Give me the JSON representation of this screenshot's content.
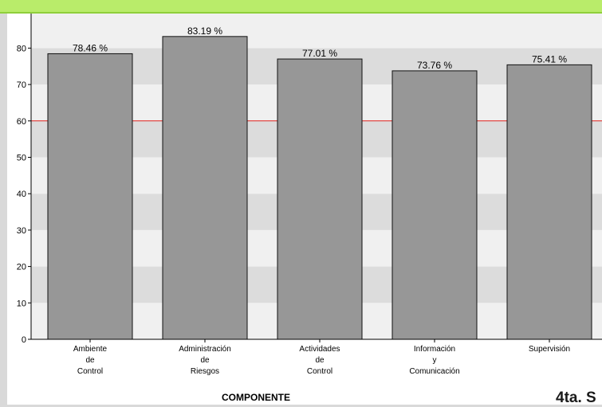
{
  "footer_text": "4ta. S",
  "colors": {
    "bar_fill": "#979797",
    "bar_stroke": "#111111",
    "band_light": "#f0f0f0",
    "band_dark": "#dcdcdc",
    "threshold_line": "#e0201a",
    "top_banner": "#b9ec6a"
  },
  "chart_data": {
    "type": "bar",
    "title": "",
    "xlabel": "COMPONENTE",
    "ylabel": "",
    "ylim": [
      0,
      90
    ],
    "yticks": [
      0,
      10,
      20,
      30,
      40,
      50,
      60,
      70,
      80
    ],
    "grid": "alternating-bands",
    "threshold": 60,
    "categories": [
      [
        "Ambiente",
        "de",
        "Control"
      ],
      [
        "Administración",
        "de",
        "Riesgos"
      ],
      [
        "Actividades",
        "de",
        "Control"
      ],
      [
        "Información",
        "y",
        "Comunicación"
      ],
      [
        "Supervisión"
      ]
    ],
    "values": [
      78.46,
      83.19,
      77.01,
      73.76,
      75.41
    ],
    "value_labels": [
      "78.46 %",
      "83.19 %",
      "77.01 %",
      "73.76 %",
      "75.41 %"
    ]
  }
}
